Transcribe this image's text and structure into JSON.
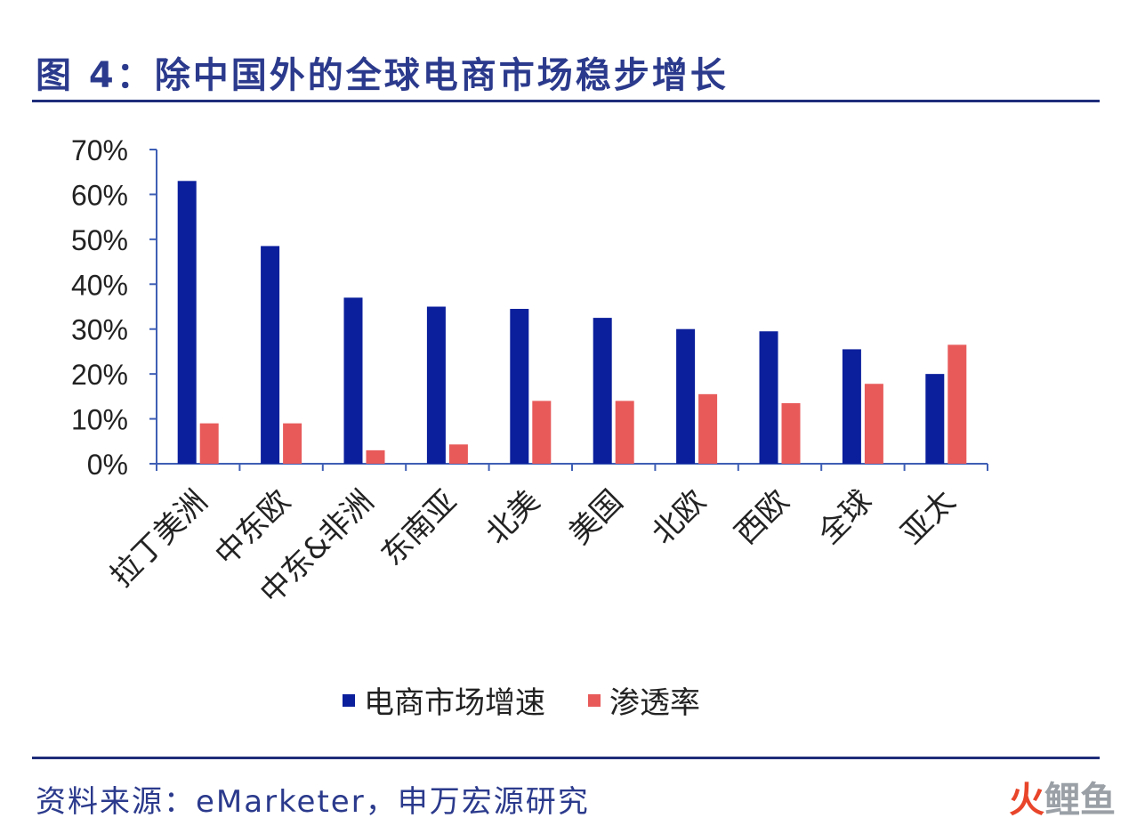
{
  "title": "图 4：除中国外的全球电商市场稳步增长",
  "source": "资料来源：eMarketer，申万宏源研究",
  "watermark": {
    "part1": "火",
    "part2": "鲤鱼"
  },
  "colors": {
    "series_growth": "#0b1f9c",
    "series_penetration": "#e85a5a",
    "axis": "#3f5fb5",
    "title_text": "#2b3a8c"
  },
  "chart_data": {
    "type": "bar",
    "categories": [
      "拉丁美洲",
      "中东欧",
      "中东&非洲",
      "东南亚",
      "北美",
      "美国",
      "北欧",
      "西欧",
      "全球",
      "亚太"
    ],
    "series": [
      {
        "name": "电商市场增速",
        "values": [
          0.63,
          0.485,
          0.37,
          0.35,
          0.345,
          0.325,
          0.3,
          0.295,
          0.255,
          0.2
        ]
      },
      {
        "name": "渗透率",
        "values": [
          0.09,
          0.09,
          0.03,
          0.043,
          0.14,
          0.14,
          0.155,
          0.135,
          0.178,
          0.265
        ]
      }
    ],
    "ylim": [
      0,
      0.7
    ],
    "yticks": [
      "0%",
      "10%",
      "20%",
      "30%",
      "40%",
      "50%",
      "60%",
      "70%"
    ],
    "legend_position": "bottom"
  }
}
